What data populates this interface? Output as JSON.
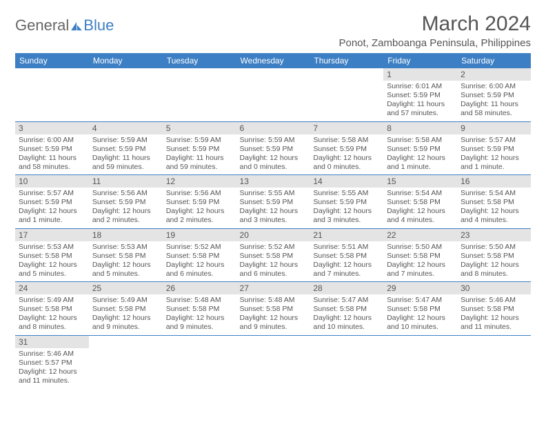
{
  "logo": {
    "word1": "General",
    "word2": "Blue"
  },
  "title": "March 2024",
  "location": "Ponot, Zamboanga Peninsula, Philippines",
  "headers": [
    "Sunday",
    "Monday",
    "Tuesday",
    "Wednesday",
    "Thursday",
    "Friday",
    "Saturday"
  ],
  "colors": {
    "accent": "#3d7fc4",
    "dayHeader": "#e4e4e4",
    "text": "#555"
  },
  "weeks": [
    [
      {
        "n": "",
        "lines": []
      },
      {
        "n": "",
        "lines": []
      },
      {
        "n": "",
        "lines": []
      },
      {
        "n": "",
        "lines": []
      },
      {
        "n": "",
        "lines": []
      },
      {
        "n": "1",
        "lines": [
          "Sunrise: 6:01 AM",
          "Sunset: 5:59 PM",
          "Daylight: 11 hours",
          "and 57 minutes."
        ]
      },
      {
        "n": "2",
        "lines": [
          "Sunrise: 6:00 AM",
          "Sunset: 5:59 PM",
          "Daylight: 11 hours",
          "and 58 minutes."
        ]
      }
    ],
    [
      {
        "n": "3",
        "lines": [
          "Sunrise: 6:00 AM",
          "Sunset: 5:59 PM",
          "Daylight: 11 hours",
          "and 58 minutes."
        ]
      },
      {
        "n": "4",
        "lines": [
          "Sunrise: 5:59 AM",
          "Sunset: 5:59 PM",
          "Daylight: 11 hours",
          "and 59 minutes."
        ]
      },
      {
        "n": "5",
        "lines": [
          "Sunrise: 5:59 AM",
          "Sunset: 5:59 PM",
          "Daylight: 11 hours",
          "and 59 minutes."
        ]
      },
      {
        "n": "6",
        "lines": [
          "Sunrise: 5:59 AM",
          "Sunset: 5:59 PM",
          "Daylight: 12 hours",
          "and 0 minutes."
        ]
      },
      {
        "n": "7",
        "lines": [
          "Sunrise: 5:58 AM",
          "Sunset: 5:59 PM",
          "Daylight: 12 hours",
          "and 0 minutes."
        ]
      },
      {
        "n": "8",
        "lines": [
          "Sunrise: 5:58 AM",
          "Sunset: 5:59 PM",
          "Daylight: 12 hours",
          "and 1 minute."
        ]
      },
      {
        "n": "9",
        "lines": [
          "Sunrise: 5:57 AM",
          "Sunset: 5:59 PM",
          "Daylight: 12 hours",
          "and 1 minute."
        ]
      }
    ],
    [
      {
        "n": "10",
        "lines": [
          "Sunrise: 5:57 AM",
          "Sunset: 5:59 PM",
          "Daylight: 12 hours",
          "and 1 minute."
        ]
      },
      {
        "n": "11",
        "lines": [
          "Sunrise: 5:56 AM",
          "Sunset: 5:59 PM",
          "Daylight: 12 hours",
          "and 2 minutes."
        ]
      },
      {
        "n": "12",
        "lines": [
          "Sunrise: 5:56 AM",
          "Sunset: 5:59 PM",
          "Daylight: 12 hours",
          "and 2 minutes."
        ]
      },
      {
        "n": "13",
        "lines": [
          "Sunrise: 5:55 AM",
          "Sunset: 5:59 PM",
          "Daylight: 12 hours",
          "and 3 minutes."
        ]
      },
      {
        "n": "14",
        "lines": [
          "Sunrise: 5:55 AM",
          "Sunset: 5:59 PM",
          "Daylight: 12 hours",
          "and 3 minutes."
        ]
      },
      {
        "n": "15",
        "lines": [
          "Sunrise: 5:54 AM",
          "Sunset: 5:58 PM",
          "Daylight: 12 hours",
          "and 4 minutes."
        ]
      },
      {
        "n": "16",
        "lines": [
          "Sunrise: 5:54 AM",
          "Sunset: 5:58 PM",
          "Daylight: 12 hours",
          "and 4 minutes."
        ]
      }
    ],
    [
      {
        "n": "17",
        "lines": [
          "Sunrise: 5:53 AM",
          "Sunset: 5:58 PM",
          "Daylight: 12 hours",
          "and 5 minutes."
        ]
      },
      {
        "n": "18",
        "lines": [
          "Sunrise: 5:53 AM",
          "Sunset: 5:58 PM",
          "Daylight: 12 hours",
          "and 5 minutes."
        ]
      },
      {
        "n": "19",
        "lines": [
          "Sunrise: 5:52 AM",
          "Sunset: 5:58 PM",
          "Daylight: 12 hours",
          "and 6 minutes."
        ]
      },
      {
        "n": "20",
        "lines": [
          "Sunrise: 5:52 AM",
          "Sunset: 5:58 PM",
          "Daylight: 12 hours",
          "and 6 minutes."
        ]
      },
      {
        "n": "21",
        "lines": [
          "Sunrise: 5:51 AM",
          "Sunset: 5:58 PM",
          "Daylight: 12 hours",
          "and 7 minutes."
        ]
      },
      {
        "n": "22",
        "lines": [
          "Sunrise: 5:50 AM",
          "Sunset: 5:58 PM",
          "Daylight: 12 hours",
          "and 7 minutes."
        ]
      },
      {
        "n": "23",
        "lines": [
          "Sunrise: 5:50 AM",
          "Sunset: 5:58 PM",
          "Daylight: 12 hours",
          "and 8 minutes."
        ]
      }
    ],
    [
      {
        "n": "24",
        "lines": [
          "Sunrise: 5:49 AM",
          "Sunset: 5:58 PM",
          "Daylight: 12 hours",
          "and 8 minutes."
        ]
      },
      {
        "n": "25",
        "lines": [
          "Sunrise: 5:49 AM",
          "Sunset: 5:58 PM",
          "Daylight: 12 hours",
          "and 9 minutes."
        ]
      },
      {
        "n": "26",
        "lines": [
          "Sunrise: 5:48 AM",
          "Sunset: 5:58 PM",
          "Daylight: 12 hours",
          "and 9 minutes."
        ]
      },
      {
        "n": "27",
        "lines": [
          "Sunrise: 5:48 AM",
          "Sunset: 5:58 PM",
          "Daylight: 12 hours",
          "and 9 minutes."
        ]
      },
      {
        "n": "28",
        "lines": [
          "Sunrise: 5:47 AM",
          "Sunset: 5:58 PM",
          "Daylight: 12 hours",
          "and 10 minutes."
        ]
      },
      {
        "n": "29",
        "lines": [
          "Sunrise: 5:47 AM",
          "Sunset: 5:58 PM",
          "Daylight: 12 hours",
          "and 10 minutes."
        ]
      },
      {
        "n": "30",
        "lines": [
          "Sunrise: 5:46 AM",
          "Sunset: 5:58 PM",
          "Daylight: 12 hours",
          "and 11 minutes."
        ]
      }
    ],
    [
      {
        "n": "31",
        "lines": [
          "Sunrise: 5:46 AM",
          "Sunset: 5:57 PM",
          "Daylight: 12 hours",
          "and 11 minutes."
        ]
      },
      {
        "n": "",
        "lines": []
      },
      {
        "n": "",
        "lines": []
      },
      {
        "n": "",
        "lines": []
      },
      {
        "n": "",
        "lines": []
      },
      {
        "n": "",
        "lines": []
      },
      {
        "n": "",
        "lines": []
      }
    ]
  ]
}
